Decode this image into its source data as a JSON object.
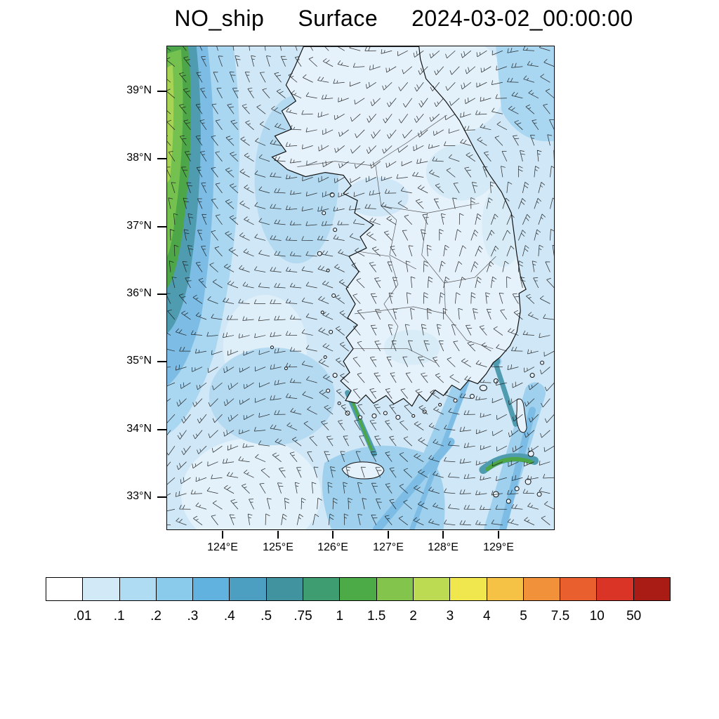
{
  "title": {
    "variable": "NO_ship",
    "level": "Surface",
    "datetime": "2024-03-02_00:00:00"
  },
  "chart_data": {
    "type": "heatmap",
    "title": "NO_ship Surface 2024-03-02_00:00:00",
    "variable": "NO_ship",
    "level": "Surface",
    "valid_time": "2024-03-02_00:00:00",
    "region": "Korean Peninsula and surrounding seas",
    "lat_ticks": [
      "39°N",
      "38°N",
      "37°N",
      "36°N",
      "35°N",
      "34°N",
      "33°N"
    ],
    "lon_ticks": [
      "124°E",
      "125°E",
      "126°E",
      "127°E",
      "128°E",
      "129°E"
    ],
    "lat_range": [
      32.5,
      39.7
    ],
    "lon_range": [
      123.0,
      130.0
    ],
    "colorbar": {
      "tick_labels": [
        ".01",
        ".1",
        ".2",
        ".3",
        ".4",
        ".5",
        ".75",
        "1",
        "1.5",
        "2",
        "3",
        "4",
        "5",
        "7.5",
        "10",
        "50"
      ],
      "tick_values": [
        0.01,
        0.1,
        0.2,
        0.3,
        0.4,
        0.5,
        0.75,
        1,
        1.5,
        2,
        3,
        4,
        5,
        7.5,
        10,
        50
      ],
      "colors": [
        "#ffffff",
        "#d2e9f7",
        "#afdcf3",
        "#8acbec",
        "#62b2df",
        "#4c9fc0",
        "#41939f",
        "#3e9e71",
        "#4cab47",
        "#83c44d",
        "#bcda52",
        "#f0e74e",
        "#f6c245",
        "#f1923b",
        "#e9602e",
        "#d93426",
        "#a81c15"
      ]
    },
    "overlays": [
      "wind-barbs",
      "coastlines",
      "province-boundaries"
    ],
    "pattern_summary": "Low values (pale blue, below 0.2) over most land and the East Sea; moderate values (0.2-0.5) over the Yellow Sea and southern sea lanes; high values (0.75-1.5, green) along the western map edge shipping lane and in narrow ship-track plumes near Busan, the Jeju Strait, and the islands southeast of the peninsula."
  }
}
